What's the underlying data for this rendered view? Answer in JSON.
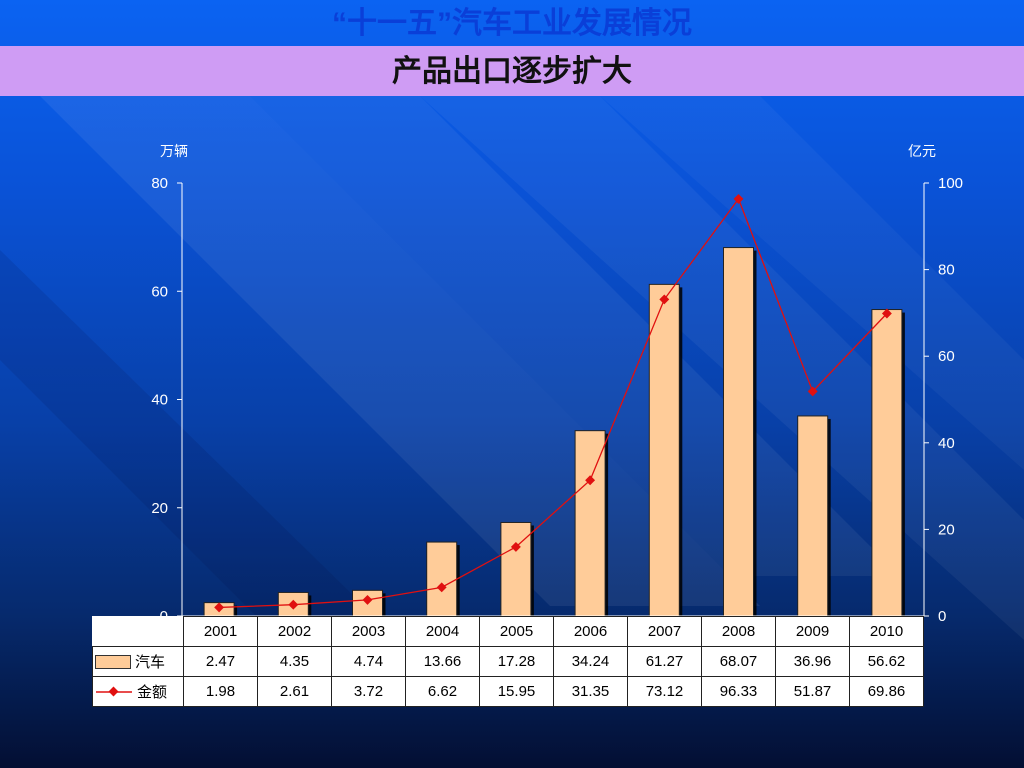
{
  "title": "“十一五”汽车工业发展情况",
  "subtitle": "产品出口逐步扩大",
  "colors": {
    "bar_fill": "#ffcc99",
    "line": "#e01010",
    "subtitle_band": "#cf9cf4",
    "title_text": "#0a3fd8"
  },
  "chart_data": {
    "type": "bar",
    "categories": [
      "2001",
      "2002",
      "2003",
      "2004",
      "2005",
      "2006",
      "2007",
      "2008",
      "2009",
      "2010"
    ],
    "series": [
      {
        "name": "汽车",
        "type": "bar",
        "axis": "left",
        "values": [
          2.47,
          4.35,
          4.74,
          13.66,
          17.28,
          34.24,
          61.27,
          68.07,
          36.96,
          56.62
        ]
      },
      {
        "name": "金额",
        "type": "line",
        "axis": "right",
        "values": [
          1.98,
          2.61,
          3.72,
          6.62,
          15.95,
          31.35,
          73.12,
          96.33,
          51.87,
          69.86
        ]
      }
    ],
    "ylabel_left": "万辆",
    "ylabel_right": "亿元",
    "ylim_left": [
      0,
      80
    ],
    "yticks_left": [
      0,
      20,
      40,
      60,
      80
    ],
    "ylim_right": [
      0,
      100
    ],
    "yticks_right": [
      0,
      20,
      40,
      60,
      80,
      100
    ],
    "grid": false,
    "legend": "data-table"
  }
}
